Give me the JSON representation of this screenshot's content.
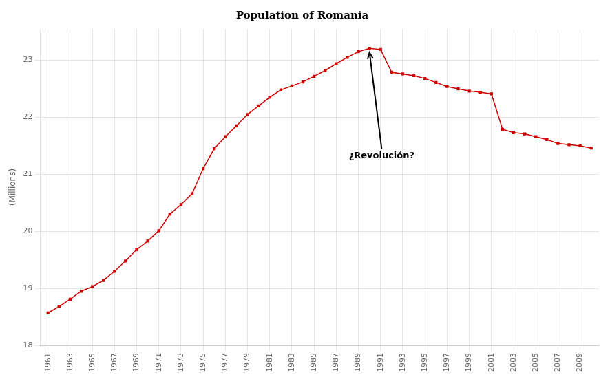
{
  "chart_data": {
    "type": "line",
    "title": "Population of Romania",
    "ylabel": "(Millions)",
    "x": [
      1961,
      1962,
      1963,
      1964,
      1965,
      1966,
      1967,
      1968,
      1969,
      1970,
      1971,
      1972,
      1973,
      1974,
      1975,
      1976,
      1977,
      1978,
      1979,
      1980,
      1981,
      1982,
      1983,
      1984,
      1985,
      1986,
      1987,
      1988,
      1989,
      1990,
      1991,
      1992,
      1993,
      1994,
      1995,
      1996,
      1997,
      1998,
      1999,
      2000,
      2001,
      2002,
      2003,
      2004,
      2005,
      2006,
      2007,
      2008,
      2009,
      2010
    ],
    "values": [
      18.57,
      18.68,
      18.81,
      18.95,
      19.03,
      19.14,
      19.3,
      19.48,
      19.68,
      19.83,
      20.01,
      20.3,
      20.47,
      20.66,
      21.1,
      21.45,
      21.66,
      21.85,
      22.05,
      22.2,
      22.35,
      22.48,
      22.55,
      22.62,
      22.72,
      22.82,
      22.94,
      23.05,
      23.15,
      23.21,
      23.19,
      22.79,
      22.76,
      22.73,
      22.68,
      22.61,
      22.54,
      22.5,
      22.46,
      22.44,
      22.41,
      21.79,
      21.73,
      21.71,
      21.66,
      21.61,
      21.54,
      21.52,
      21.5,
      21.46
    ],
    "color": "#cc0000",
    "marker": "square",
    "line_style": "solid",
    "xlim": [
      1960.3,
      2010.7
    ],
    "xticks": [
      1961,
      1963,
      1965,
      1967,
      1969,
      1971,
      1973,
      1975,
      1977,
      1979,
      1981,
      1983,
      1985,
      1987,
      1989,
      1991,
      1993,
      1995,
      1997,
      1999,
      2001,
      2003,
      2005,
      2007,
      2009
    ],
    "ylim": [
      18.0,
      23.55
    ],
    "yticks": [
      18,
      19,
      20,
      21,
      22,
      23
    ],
    "grid": true,
    "annotations": [
      {
        "text": "¿Revolución?",
        "x": 1990,
        "y": 23.21
      }
    ]
  }
}
